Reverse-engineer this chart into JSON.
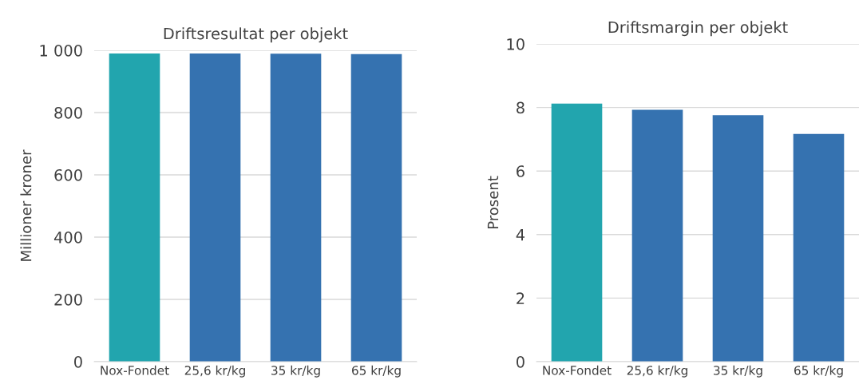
{
  "chart_data": [
    {
      "type": "bar",
      "title": "Driftsresultat per objekt",
      "ylabel": "Millioner kroner",
      "categories": [
        "Nox-Fondet",
        "25,6 kr/kg",
        "35 kr/kg",
        "65 kr/kg"
      ],
      "values": [
        990,
        990,
        989,
        988
      ],
      "colors": [
        "#22a5ae",
        "#3572b0",
        "#3572b0",
        "#3572b0"
      ],
      "ylim": [
        0,
        1000
      ],
      "yticks": [
        0,
        200,
        400,
        600,
        800,
        {
          "value": 1000,
          "label": "1 000"
        }
      ],
      "grid": "y",
      "legend": false
    },
    {
      "type": "bar",
      "title": "Driftsmargin per objekt",
      "ylabel": "Prosent",
      "categories": [
        "Nox-Fondet",
        "25,6 kr/kg",
        "35 kr/kg",
        "65 kr/kg"
      ],
      "values": [
        8.12,
        7.93,
        7.76,
        7.17
      ],
      "colors": [
        "#22a5ae",
        "#3572b0",
        "#3572b0",
        "#3572b0"
      ],
      "ylim": [
        0,
        10
      ],
      "yticks": [
        0,
        2,
        4,
        6,
        8,
        10
      ],
      "grid": "y",
      "legend": false
    }
  ]
}
